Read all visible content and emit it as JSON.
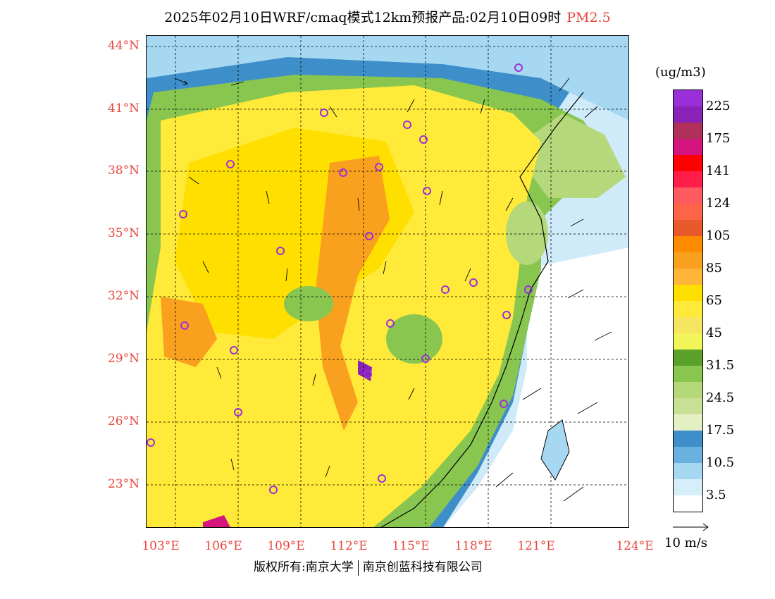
{
  "title": {
    "main": "2025年02月10日WRF/cmaq模式12km预报产品:02月10日09时",
    "pollutant": "PM2.5"
  },
  "lat_labels": [
    "44°N",
    "41°N",
    "38°N",
    "35°N",
    "32°N",
    "29°N",
    "26°N",
    "23°N"
  ],
  "lon_labels": [
    "103°E",
    "106°E",
    "109°E",
    "112°E",
    "115°E",
    "118°E",
    "121°E",
    "124°E"
  ],
  "colorbar": {
    "unit": "(ug/m3)",
    "colors": [
      "#9a2fd8",
      "#8b22b8",
      "#b0305a",
      "#d4157d",
      "#ff0000",
      "#ff1e48",
      "#ff5a5f",
      "#ff6448",
      "#e85a2c",
      "#ff8c00",
      "#f9a11e",
      "#ffb43a",
      "#ffdf00",
      "#ffea3a",
      "#f5e560",
      "#f2f55a",
      "#5aa02a",
      "#88c650",
      "#b4d87a",
      "#c8e096",
      "#e4efc4",
      "#3e8fc9",
      "#6bb1df",
      "#a6d8f2",
      "#d6eefa",
      "#ffffff"
    ],
    "labels": [
      "225",
      "175",
      "141",
      "124",
      "105",
      "85",
      "65",
      "45",
      "31.5",
      "24.5",
      "17.5",
      "10.5",
      "3.5"
    ]
  },
  "wind_legend": "10 m/s",
  "copyright": {
    "left": "版权所有:南京大学",
    "right": "南京创蓝科技有限公司"
  },
  "colors": {
    "axis_label": "#e8473c",
    "city_marker": "#9b30d9"
  }
}
